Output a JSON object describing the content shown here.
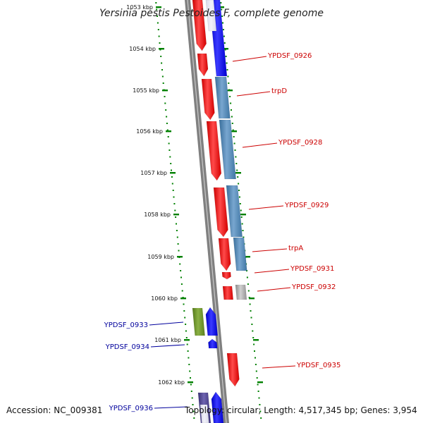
{
  "title": "Yersinia pestis Pestoides F, complete genome",
  "footer": {
    "accession": "Accession: NC_009381",
    "summary": "Topology: circular; Length: 4,517,345 bp; Genes: 3,954"
  },
  "colors": {
    "forward_strand": "#ff0000",
    "reverse_strand": "#0000ff",
    "steel": "#4682b4",
    "olive": "#6b8e23",
    "slate": "#483d8b",
    "grey": "#a9a9a9",
    "tick": "#008000",
    "backbone": "#808080"
  },
  "ruler": {
    "ticks": [
      {
        "label": "1053 kbp",
        "faded": true
      },
      {
        "label": "1054 kbp"
      },
      {
        "label": "1055 kbp"
      },
      {
        "label": "1056 kbp"
      },
      {
        "label": "1057 kbp"
      },
      {
        "label": "1058 kbp"
      },
      {
        "label": "1059 kbp"
      },
      {
        "label": "1060 kbp"
      },
      {
        "label": "1061 kbp"
      },
      {
        "label": "1062 kbp"
      }
    ]
  },
  "gene_labels": [
    {
      "text": "YPDSF_0926",
      "side": "right"
    },
    {
      "text": "trpD",
      "side": "right"
    },
    {
      "text": "YPDSF_0928",
      "side": "right"
    },
    {
      "text": "YPDSF_0929",
      "side": "right"
    },
    {
      "text": "trpA",
      "side": "right"
    },
    {
      "text": "YPDSF_0931",
      "side": "right"
    },
    {
      "text": "YPDSF_0932",
      "side": "right"
    },
    {
      "text": "YPDSF_0933",
      "side": "left"
    },
    {
      "text": "YPDSF_0934",
      "side": "left"
    },
    {
      "text": "YPDSF_0935",
      "side": "right"
    },
    {
      "text": "YPDSF_0936",
      "side": "left"
    }
  ]
}
